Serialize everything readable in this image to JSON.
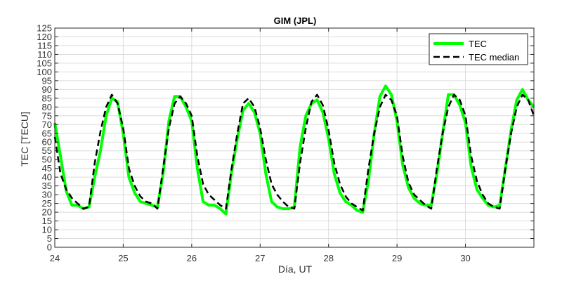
{
  "chart_data": {
    "type": "line",
    "title": "GIM (JPL)",
    "xlabel": "Día, UT",
    "ylabel": "TEC [TECU]",
    "xlim": [
      24,
      31
    ],
    "ylim": [
      0,
      125
    ],
    "xticks": [
      24,
      25,
      26,
      27,
      28,
      29,
      30
    ],
    "yticks": [
      0,
      5,
      10,
      15,
      20,
      25,
      30,
      35,
      40,
      45,
      50,
      55,
      60,
      65,
      70,
      75,
      80,
      85,
      90,
      95,
      100,
      105,
      110,
      115,
      120,
      125
    ],
    "grid": true,
    "legend": "top-right",
    "series": [
      {
        "name": "TEC",
        "color": "#00ff00",
        "style": "solid",
        "x": [
          24.0,
          24.083,
          24.167,
          24.25,
          24.333,
          24.417,
          24.5,
          24.583,
          24.667,
          24.75,
          24.833,
          24.917,
          25.0,
          25.083,
          25.167,
          25.25,
          25.333,
          25.417,
          25.5,
          25.583,
          25.667,
          25.75,
          25.833,
          25.917,
          26.0,
          26.083,
          26.167,
          26.25,
          26.333,
          26.417,
          26.5,
          26.583,
          26.667,
          26.75,
          26.833,
          26.917,
          27.0,
          27.083,
          27.167,
          27.25,
          27.333,
          27.417,
          27.5,
          27.583,
          27.667,
          27.75,
          27.833,
          27.917,
          28.0,
          28.083,
          28.167,
          28.25,
          28.333,
          28.417,
          28.5,
          28.583,
          28.667,
          28.75,
          28.833,
          28.917,
          29.0,
          29.083,
          29.167,
          29.25,
          29.333,
          29.417,
          29.5,
          29.583,
          29.667,
          29.75,
          29.833,
          29.917,
          30.0,
          30.083,
          30.167,
          30.25,
          30.333,
          30.417,
          30.5,
          30.583,
          30.667,
          30.75,
          30.833,
          30.917,
          31.0
        ],
        "values": [
          71,
          52,
          32,
          24,
          24,
          22,
          23,
          40,
          55,
          75,
          85,
          83,
          65,
          40,
          31,
          26,
          25,
          24,
          23,
          42,
          72,
          86,
          86,
          80,
          72,
          45,
          26,
          24,
          24,
          22,
          19,
          43,
          62,
          78,
          82,
          77,
          65,
          42,
          26,
          23,
          22,
          22,
          23,
          57,
          75,
          82,
          84,
          77,
          62,
          42,
          31,
          26,
          24,
          21,
          20,
          38,
          65,
          86,
          92,
          87,
          72,
          47,
          34,
          28,
          25,
          24,
          24,
          42,
          65,
          87,
          87,
          81,
          71,
          46,
          33,
          28,
          24,
          23,
          24,
          45,
          67,
          84,
          90,
          84,
          80
        ]
      },
      {
        "name": "TEC median",
        "color": "#000000",
        "style": "dashed",
        "x": [
          24.0,
          24.083,
          24.167,
          24.25,
          24.333,
          24.417,
          24.5,
          24.583,
          24.667,
          24.75,
          24.833,
          24.917,
          25.0,
          25.083,
          25.167,
          25.25,
          25.333,
          25.417,
          25.5,
          25.583,
          25.667,
          25.75,
          25.833,
          25.917,
          26.0,
          26.083,
          26.167,
          26.25,
          26.333,
          26.417,
          26.5,
          26.583,
          26.667,
          26.75,
          26.833,
          26.917,
          27.0,
          27.083,
          27.167,
          27.25,
          27.333,
          27.417,
          27.5,
          27.583,
          27.667,
          27.75,
          27.833,
          27.917,
          28.0,
          28.083,
          28.167,
          28.25,
          28.333,
          28.417,
          28.5,
          28.583,
          28.667,
          28.75,
          28.833,
          28.917,
          29.0,
          29.083,
          29.167,
          29.25,
          29.333,
          29.417,
          29.5,
          29.583,
          29.667,
          29.75,
          29.833,
          29.917,
          30.0,
          30.083,
          30.167,
          30.25,
          30.333,
          30.417,
          30.5,
          30.583,
          30.667,
          30.75,
          30.833,
          30.917,
          31.0
        ],
        "values": [
          63,
          42,
          33,
          28,
          25,
          22,
          23,
          48,
          66,
          80,
          87,
          82,
          68,
          45,
          35,
          29,
          26,
          25,
          22,
          45,
          68,
          82,
          86,
          82,
          75,
          52,
          36,
          30,
          27,
          24,
          22,
          45,
          65,
          82,
          85,
          80,
          68,
          50,
          36,
          30,
          26,
          23,
          22,
          48,
          68,
          83,
          87,
          81,
          67,
          48,
          36,
          29,
          25,
          23,
          21,
          45,
          65,
          80,
          87,
          84,
          75,
          52,
          37,
          30,
          27,
          24,
          22,
          45,
          65,
          80,
          87,
          84,
          75,
          52,
          38,
          30,
          25,
          23,
          22,
          45,
          65,
          80,
          87,
          84,
          75
        ]
      }
    ]
  }
}
